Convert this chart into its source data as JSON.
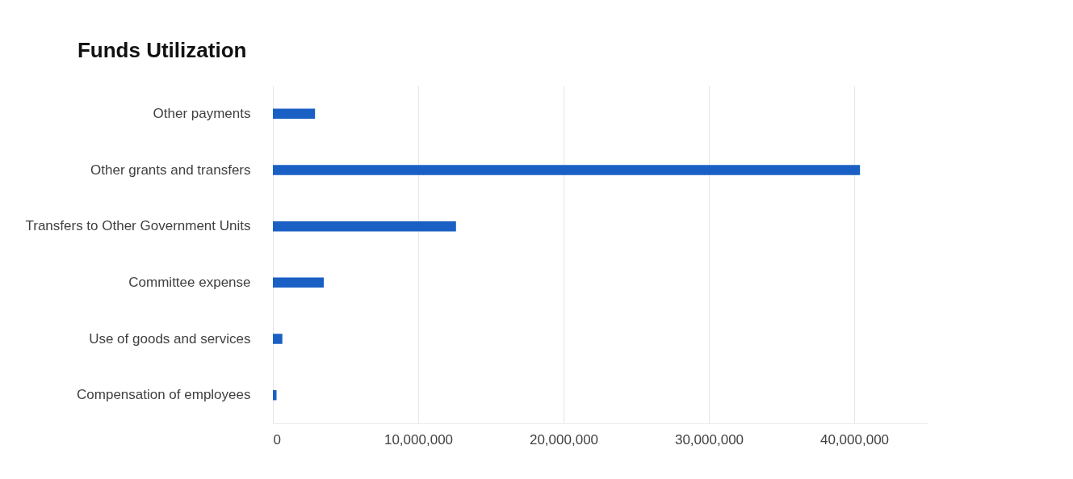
{
  "chart_data": {
    "type": "bar",
    "orientation": "horizontal",
    "title": "Funds Utilization",
    "categories": [
      "Other payments",
      "Other grants and transfers",
      "Transfers to Other Government Units",
      "Committee expense",
      "Use of goods and services",
      "Compensation of employees"
    ],
    "values": [
      2900000,
      40400000,
      12600000,
      3500000,
      650000,
      250000
    ],
    "color": "#1a5fc4",
    "xlim": [
      0,
      45000000
    ],
    "xticks": [
      {
        "value": 0,
        "label": "0"
      },
      {
        "value": 10000000,
        "label": "10,000,000"
      },
      {
        "value": 20000000,
        "label": "20,000,000"
      },
      {
        "value": 30000000,
        "label": "30,000,000"
      },
      {
        "value": 40000000,
        "label": "40,000,000"
      }
    ],
    "grid": true
  }
}
